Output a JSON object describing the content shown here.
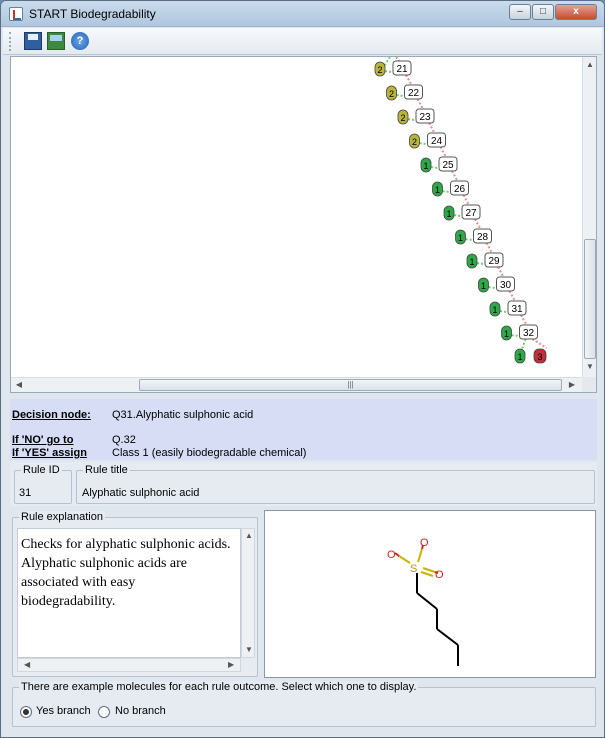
{
  "window": {
    "title": "START Biodegradability",
    "min_label": "–",
    "max_label": "□",
    "close_label": "x"
  },
  "toolbar": {
    "help_glyph": "?"
  },
  "tree": {
    "nodes": [
      {
        "q": "21",
        "cls": "2"
      },
      {
        "q": "22",
        "cls": "2"
      },
      {
        "q": "23",
        "cls": "2"
      },
      {
        "q": "24",
        "cls": "2"
      },
      {
        "q": "25",
        "cls": "1"
      },
      {
        "q": "26",
        "cls": "1"
      },
      {
        "q": "27",
        "cls": "1"
      },
      {
        "q": "28",
        "cls": "1"
      },
      {
        "q": "29",
        "cls": "1"
      },
      {
        "q": "30",
        "cls": "1"
      },
      {
        "q": "31",
        "cls": "1"
      },
      {
        "q": "32",
        "cls": "1"
      }
    ],
    "final": {
      "yes": "1",
      "no": "3"
    },
    "colors": {
      "class1": "#2fa84a",
      "class2": "#b9b43a",
      "class3": "#c0303a",
      "yes_edge": "#6fcf6f",
      "no_edge": "#e59090"
    }
  },
  "decision": {
    "node_label": "Decision node:",
    "node_value": "Q31.Alyphatic sulphonic acid",
    "no_label": "If 'NO' go to",
    "no_value": "Q.32",
    "yes_label": "If 'YES' assign",
    "yes_value": "Class 1 (easily biodegradable chemical)"
  },
  "rule": {
    "id_title": "Rule ID",
    "id_value": "31",
    "title_title": "Rule title",
    "title_value": "Alyphatic sulphonic acid"
  },
  "explanation": {
    "title": "Rule explanation",
    "text": "Checks for alyphatic sulphonic acids. Alyphatic sulphonic acids are associated with easy biodegradability."
  },
  "molecule": {
    "atom_o": "O",
    "atom_s": "S"
  },
  "examples": {
    "title": "There are example molecules for each rule outcome. Select which one to display.",
    "options": [
      {
        "label": "Yes branch",
        "selected": true
      },
      {
        "label": "No branch",
        "selected": false
      }
    ]
  }
}
